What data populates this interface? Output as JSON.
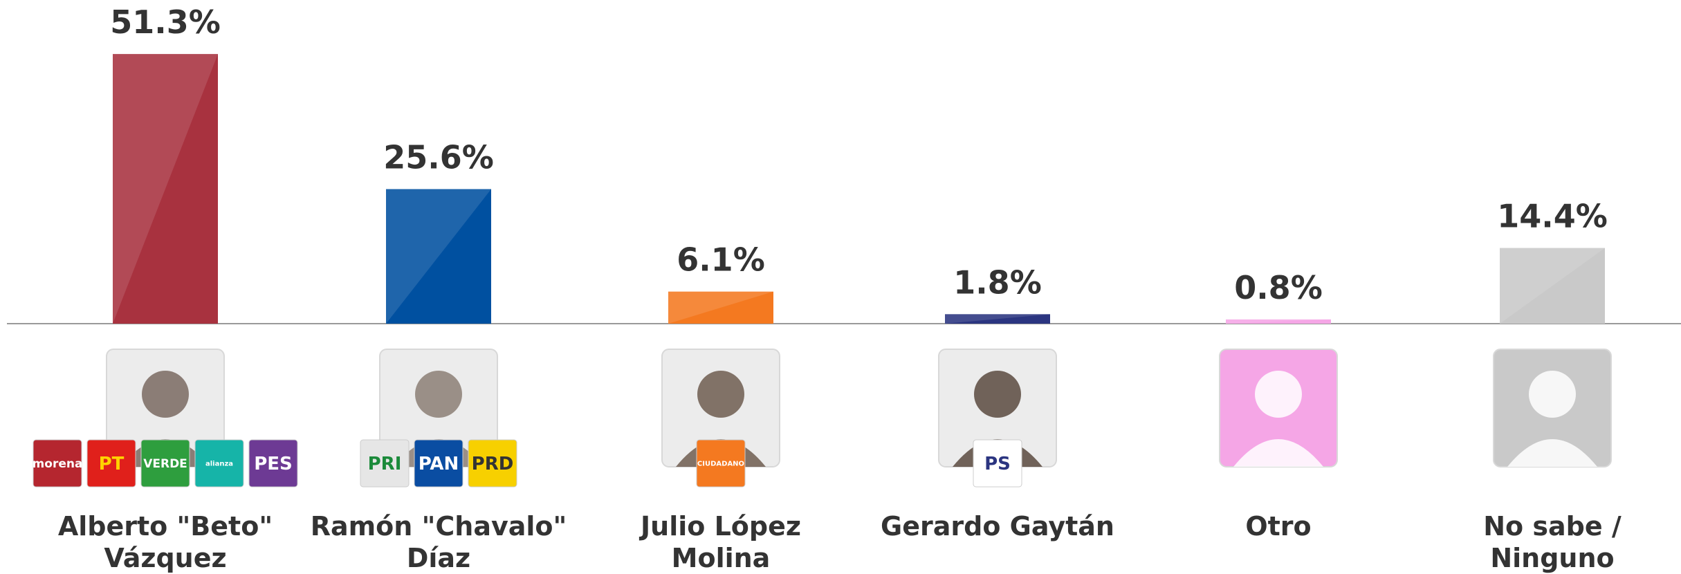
{
  "chart_data": {
    "type": "bar",
    "categories": [
      "Alberto \"Beto\" Vázquez",
      "Ramón \"Chavalo\" Díaz",
      "Julio López Molina",
      "Gerardo Gaytán",
      "Otro",
      "No sabe / Ninguno"
    ],
    "values": [
      51.3,
      25.6,
      6.1,
      1.8,
      0.8,
      14.4
    ],
    "value_labels": [
      "51.3%",
      "25.6%",
      "6.1%",
      "1.8%",
      "0.8%",
      "14.4%"
    ],
    "colors": [
      "#a8323f",
      "#0050a0",
      "#f47920",
      "#2b3580",
      "#f5a6e6",
      "#c9c9c9"
    ],
    "party_logos": [
      [
        {
          "label": "morena",
          "color": "#b5262f",
          "text_color": "#ffffff"
        },
        {
          "label": "PT",
          "color": "#e0201b",
          "text_color": "#ffd200"
        },
        {
          "label": "VERDE",
          "color": "#2e9e3e",
          "text_color": "#ffffff"
        },
        {
          "label": "alianza",
          "color": "#16b4a8",
          "text_color": "#ffffff"
        },
        {
          "label": "PES",
          "color": "#6d3a94",
          "text_color": "#ffffff"
        }
      ],
      [
        {
          "label": "PRI",
          "color": "#e6e6e6",
          "text_color": "#1b8a3a"
        },
        {
          "label": "PAN",
          "color": "#0a4da2",
          "text_color": "#ffffff"
        },
        {
          "label": "PRD",
          "color": "#f7d000",
          "text_color": "#333333"
        }
      ],
      [
        {
          "label": "CIUDADANO",
          "color": "#f47920",
          "text_color": "#ffffff"
        }
      ],
      [
        {
          "label": "PS",
          "color": "#ffffff",
          "text_color": "#2b3580"
        }
      ],
      [],
      []
    ]
  }
}
